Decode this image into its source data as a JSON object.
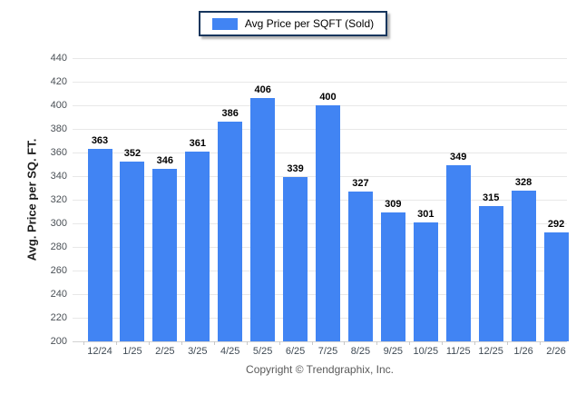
{
  "legend": {
    "label": "Avg Price per SQFT (Sold)"
  },
  "footer": {
    "copyright": "Copyright © Trendgraphix, Inc."
  },
  "colors": {
    "bar": "#4184f3",
    "legend_border": "#17365d",
    "grid": "#e8e8e8",
    "axis_text": "#4a5056",
    "value_label": "#000000"
  },
  "chart_data": {
    "type": "bar",
    "title": "",
    "legend": [
      "Avg Price per SQFT (Sold)"
    ],
    "legend_position": "top",
    "categories": [
      "12/24",
      "1/25",
      "2/25",
      "3/25",
      "4/25",
      "5/25",
      "6/25",
      "7/25",
      "8/25",
      "9/25",
      "10/25",
      "11/25",
      "12/25",
      "1/26",
      "2/26"
    ],
    "values": [
      363,
      352,
      346,
      361,
      386,
      406,
      339,
      400,
      327,
      309,
      301,
      349,
      315,
      328,
      292
    ],
    "xlabel": "",
    "ylabel": "Avg. Price per SQ. FT.",
    "ylim": [
      200,
      440
    ],
    "ytick_step": 20,
    "grid": true,
    "value_labels": true,
    "bar_color": "#4184f3"
  }
}
